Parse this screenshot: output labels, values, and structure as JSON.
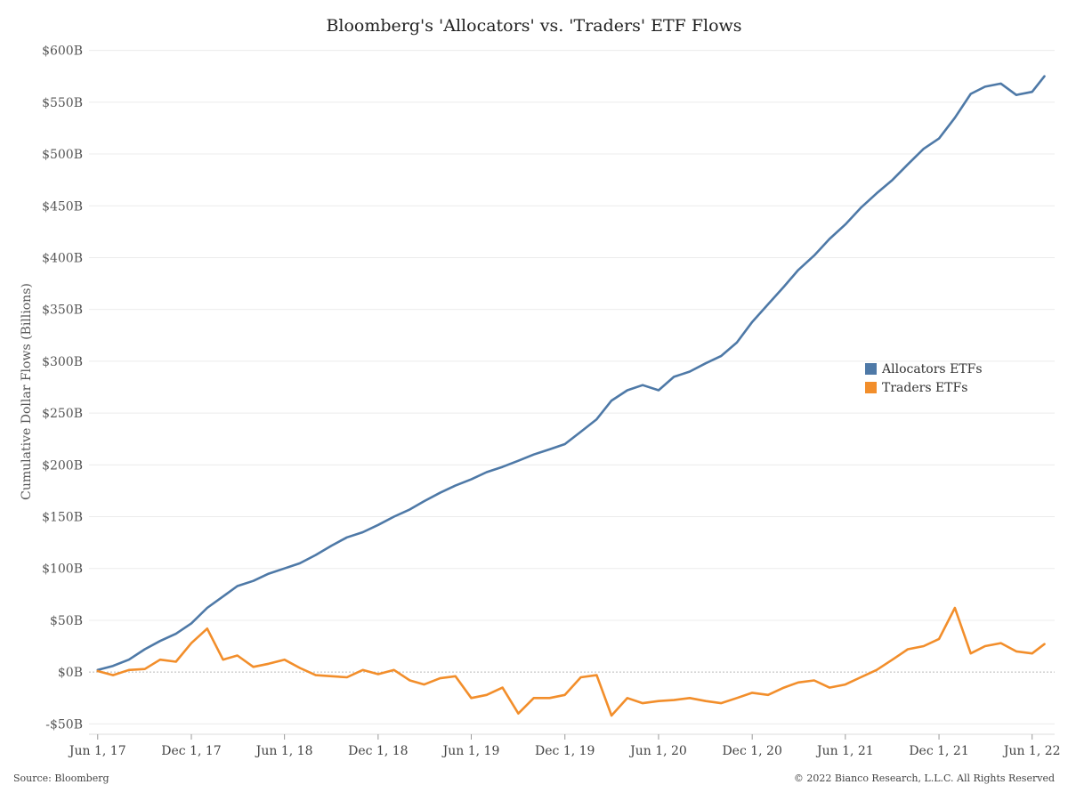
{
  "chart_data": {
    "type": "line",
    "title": "Bloomberg's 'Allocators' vs. 'Traders' ETF Flows",
    "ylabel": "Cumulative Dollar Flows (Billions)",
    "xlabel": "",
    "ylim": [
      -60,
      610
    ],
    "xlim": [
      "2017-05-15",
      "2022-07-15"
    ],
    "yticks": [
      {
        "value": 600,
        "label": "$600B"
      },
      {
        "value": 550,
        "label": "$550B"
      },
      {
        "value": 500,
        "label": "$500B"
      },
      {
        "value": 450,
        "label": "$450B"
      },
      {
        "value": 400,
        "label": "$400B"
      },
      {
        "value": 350,
        "label": "$350B"
      },
      {
        "value": 300,
        "label": "$300B"
      },
      {
        "value": 250,
        "label": "$250B"
      },
      {
        "value": 200,
        "label": "$200B"
      },
      {
        "value": 150,
        "label": "$150B"
      },
      {
        "value": 100,
        "label": "$100B"
      },
      {
        "value": 50,
        "label": "$50B"
      },
      {
        "value": 0,
        "label": "$0B"
      },
      {
        "value": -50,
        "label": "-$50B"
      }
    ],
    "xticks": [
      {
        "value": "2017-06-01",
        "label": "Jun 1, 17"
      },
      {
        "value": "2017-12-01",
        "label": "Dec 1, 17"
      },
      {
        "value": "2018-06-01",
        "label": "Jun 1, 18"
      },
      {
        "value": "2018-12-01",
        "label": "Dec 1, 18"
      },
      {
        "value": "2019-06-01",
        "label": "Jun 1, 19"
      },
      {
        "value": "2019-12-01",
        "label": "Dec 1, 19"
      },
      {
        "value": "2020-06-01",
        "label": "Jun 1, 20"
      },
      {
        "value": "2020-12-01",
        "label": "Dec 1, 20"
      },
      {
        "value": "2021-06-01",
        "label": "Jun 1, 21"
      },
      {
        "value": "2021-12-01",
        "label": "Dec 1, 21"
      },
      {
        "value": "2022-06-01",
        "label": "Jun 1, 22"
      }
    ],
    "grid": true,
    "legend_position": "right-middle",
    "series": [
      {
        "name": "Allocators ETFs",
        "color": "#4E79A7",
        "points": [
          [
            "2017-06-01",
            2
          ],
          [
            "2017-07-01",
            6
          ],
          [
            "2017-08-01",
            12
          ],
          [
            "2017-09-01",
            22
          ],
          [
            "2017-10-01",
            30
          ],
          [
            "2017-11-01",
            37
          ],
          [
            "2017-12-01",
            47
          ],
          [
            "2018-01-01",
            62
          ],
          [
            "2018-02-01",
            73
          ],
          [
            "2018-03-01",
            83
          ],
          [
            "2018-04-01",
            88
          ],
          [
            "2018-05-01",
            95
          ],
          [
            "2018-06-01",
            100
          ],
          [
            "2018-07-01",
            105
          ],
          [
            "2018-08-01",
            113
          ],
          [
            "2018-09-01",
            122
          ],
          [
            "2018-10-01",
            130
          ],
          [
            "2018-11-01",
            135
          ],
          [
            "2018-12-01",
            142
          ],
          [
            "2019-01-01",
            150
          ],
          [
            "2019-02-01",
            157
          ],
          [
            "2019-03-01",
            165
          ],
          [
            "2019-04-01",
            173
          ],
          [
            "2019-05-01",
            180
          ],
          [
            "2019-06-01",
            186
          ],
          [
            "2019-07-01",
            193
          ],
          [
            "2019-08-01",
            198
          ],
          [
            "2019-09-01",
            204
          ],
          [
            "2019-10-01",
            210
          ],
          [
            "2019-11-01",
            215
          ],
          [
            "2019-12-01",
            220
          ],
          [
            "2020-01-01",
            232
          ],
          [
            "2020-02-01",
            244
          ],
          [
            "2020-03-01",
            262
          ],
          [
            "2020-04-01",
            272
          ],
          [
            "2020-05-01",
            277
          ],
          [
            "2020-06-01",
            272
          ],
          [
            "2020-07-01",
            285
          ],
          [
            "2020-08-01",
            290
          ],
          [
            "2020-09-01",
            298
          ],
          [
            "2020-10-01",
            305
          ],
          [
            "2020-11-01",
            318
          ],
          [
            "2020-12-01",
            338
          ],
          [
            "2021-01-01",
            355
          ],
          [
            "2021-02-01",
            372
          ],
          [
            "2021-03-01",
            388
          ],
          [
            "2021-04-01",
            402
          ],
          [
            "2021-05-01",
            418
          ],
          [
            "2021-06-01",
            432
          ],
          [
            "2021-07-01",
            448
          ],
          [
            "2021-08-01",
            462
          ],
          [
            "2021-09-01",
            475
          ],
          [
            "2021-10-01",
            490
          ],
          [
            "2021-11-01",
            505
          ],
          [
            "2021-12-01",
            515
          ],
          [
            "2022-01-01",
            535
          ],
          [
            "2022-02-01",
            558
          ],
          [
            "2022-03-01",
            565
          ],
          [
            "2022-04-01",
            568
          ],
          [
            "2022-05-01",
            557
          ],
          [
            "2022-06-01",
            560
          ],
          [
            "2022-06-25",
            575
          ]
        ]
      },
      {
        "name": "Traders ETFs",
        "color": "#F28E2B",
        "points": [
          [
            "2017-06-01",
            1
          ],
          [
            "2017-07-01",
            -3
          ],
          [
            "2017-08-01",
            2
          ],
          [
            "2017-09-01",
            3
          ],
          [
            "2017-10-01",
            12
          ],
          [
            "2017-11-01",
            10
          ],
          [
            "2017-12-01",
            28
          ],
          [
            "2018-01-01",
            42
          ],
          [
            "2018-02-01",
            12
          ],
          [
            "2018-03-01",
            16
          ],
          [
            "2018-04-01",
            5
          ],
          [
            "2018-05-01",
            8
          ],
          [
            "2018-06-01",
            12
          ],
          [
            "2018-07-01",
            4
          ],
          [
            "2018-08-01",
            -3
          ],
          [
            "2018-09-01",
            -4
          ],
          [
            "2018-10-01",
            -5
          ],
          [
            "2018-11-01",
            2
          ],
          [
            "2018-12-01",
            -2
          ],
          [
            "2019-01-01",
            2
          ],
          [
            "2019-02-01",
            -8
          ],
          [
            "2019-03-01",
            -12
          ],
          [
            "2019-04-01",
            -6
          ],
          [
            "2019-05-01",
            -4
          ],
          [
            "2019-06-01",
            -25
          ],
          [
            "2019-07-01",
            -22
          ],
          [
            "2019-08-01",
            -15
          ],
          [
            "2019-09-01",
            -40
          ],
          [
            "2019-10-01",
            -25
          ],
          [
            "2019-11-01",
            -25
          ],
          [
            "2019-12-01",
            -22
          ],
          [
            "2020-01-01",
            -5
          ],
          [
            "2020-02-01",
            -3
          ],
          [
            "2020-03-01",
            -42
          ],
          [
            "2020-04-01",
            -25
          ],
          [
            "2020-05-01",
            -30
          ],
          [
            "2020-06-01",
            -28
          ],
          [
            "2020-07-01",
            -27
          ],
          [
            "2020-08-01",
            -25
          ],
          [
            "2020-09-01",
            -28
          ],
          [
            "2020-10-01",
            -30
          ],
          [
            "2020-11-01",
            -25
          ],
          [
            "2020-12-01",
            -20
          ],
          [
            "2021-01-01",
            -22
          ],
          [
            "2021-02-01",
            -15
          ],
          [
            "2021-03-01",
            -10
          ],
          [
            "2021-04-01",
            -8
          ],
          [
            "2021-05-01",
            -15
          ],
          [
            "2021-06-01",
            -12
          ],
          [
            "2021-07-01",
            -5
          ],
          [
            "2021-08-01",
            2
          ],
          [
            "2021-09-01",
            12
          ],
          [
            "2021-10-01",
            22
          ],
          [
            "2021-11-01",
            25
          ],
          [
            "2021-12-01",
            32
          ],
          [
            "2022-01-01",
            62
          ],
          [
            "2022-02-01",
            18
          ],
          [
            "2022-03-01",
            25
          ],
          [
            "2022-04-01",
            28
          ],
          [
            "2022-05-01",
            20
          ],
          [
            "2022-06-01",
            18
          ],
          [
            "2022-06-25",
            27
          ]
        ]
      }
    ]
  },
  "footer": {
    "source": "Source: Bloomberg",
    "copyright": "© 2022 Bianco Research, L.L.C. All Rights Reserved"
  }
}
